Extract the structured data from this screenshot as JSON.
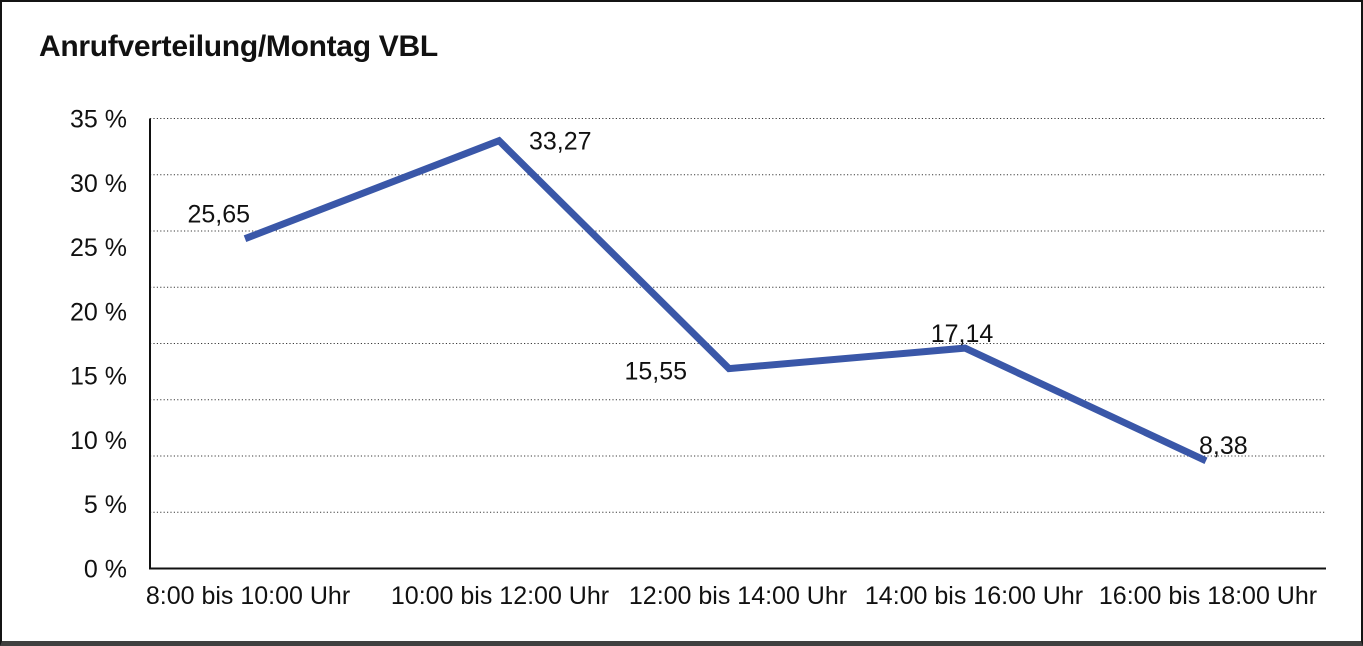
{
  "page": {
    "title": "Anrufverteilung/Montag VBL"
  },
  "chart_data": {
    "type": "line",
    "title": "Anrufverteilung/Montag VBL",
    "categories": [
      "8:00 bis 10:00 Uhr",
      "10:00 bis 12:00 Uhr",
      "12:00 bis 14:00 Uhr",
      "14:00 bis 16:00 Uhr",
      "16:00 bis 18:00 Uhr"
    ],
    "values": [
      25.65,
      33.27,
      15.55,
      17.14,
      8.38
    ],
    "point_labels": [
      "25,65",
      "33,27",
      "15,55",
      "17,14",
      "8,38"
    ],
    "xlabel": "",
    "ylabel": "",
    "ylim": [
      0,
      35
    ],
    "y_tick_step": 5,
    "y_tick_labels": [
      "0 %",
      "5 %",
      "10 %",
      "15 %",
      "20 %",
      "25 %",
      "30 %",
      "35 %"
    ],
    "grid": "horizontal-dotted",
    "gridline_divisions": 8,
    "legend": "none",
    "colors": {
      "line": "#3A57A8",
      "axis": "#111111",
      "grid": "#3A3A3A",
      "text": "#111111"
    }
  }
}
